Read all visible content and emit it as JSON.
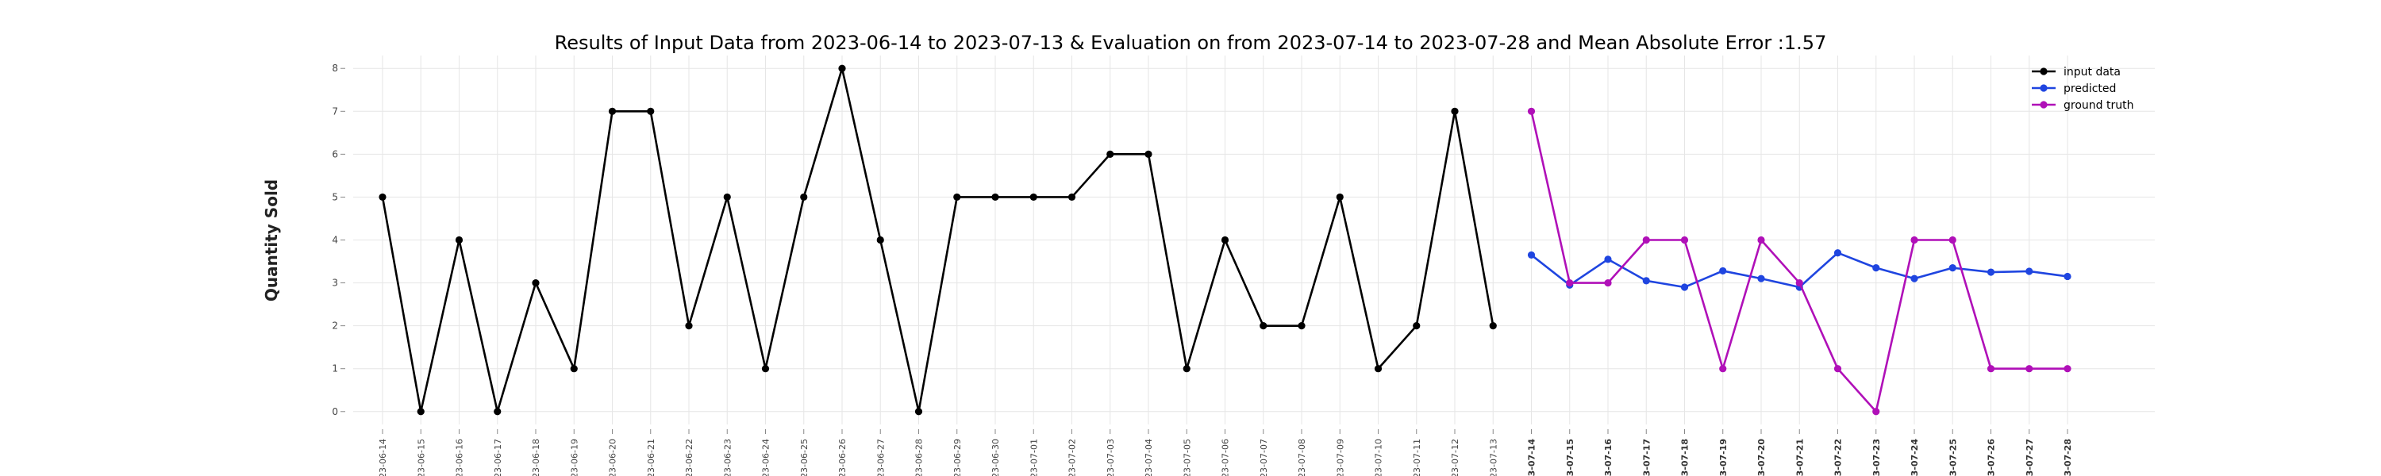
{
  "chart_data": {
    "type": "line",
    "title": "Results of Input Data from 2023-06-14 to 2023-07-13 & Evaluation on from 2023-07-14 to 2023-07-28 and Mean Absolute Error  :1.57",
    "xlabel": "",
    "ylabel": "Quantity Sold",
    "ylim": [
      -0.3,
      8.3
    ],
    "yticks": [
      0,
      1,
      2,
      3,
      4,
      5,
      6,
      7,
      8
    ],
    "grid": true,
    "legend_position": "top-right",
    "x_tick_labels": [
      "-23-06-14",
      "-23-06-15",
      "-23-06-16",
      "-23-06-17",
      "-23-06-18",
      "-23-06-19",
      "-23-06-20",
      "-23-06-21",
      "-23-06-22",
      "-23-06-23",
      "-23-06-24",
      "-23-06-25",
      "-23-06-26",
      "-23-06-27",
      "-23-06-28",
      "-23-06-29",
      "-23-06-30",
      "-23-07-01",
      "-23-07-02",
      "-23-07-03",
      "-23-07-04",
      "-23-07-05",
      "-23-07-06",
      "-23-07-07",
      "-23-07-08",
      "-23-07-09",
      "-23-07-10",
      "-23-07-11",
      "-23-07-12",
      "-23-07-13",
      "-23-07-14",
      "-23-07-15",
      "-23-07-16",
      "-23-07-17",
      "-23-07-18",
      "-23-07-19",
      "-23-07-20",
      "-23-07-21",
      "-23-07-22",
      "-23-07-23",
      "-23-07-24",
      "-23-07-25",
      "-23-07-26",
      "-23-07-27",
      "-23-07-28"
    ],
    "bold_tick_from": 30,
    "series": [
      {
        "name": "input data",
        "color": "#000000",
        "x": [
          "2023-06-14",
          "2023-06-15",
          "2023-06-16",
          "2023-06-17",
          "2023-06-18",
          "2023-06-19",
          "2023-06-20",
          "2023-06-21",
          "2023-06-22",
          "2023-06-23",
          "2023-06-24",
          "2023-06-25",
          "2023-06-26",
          "2023-06-27",
          "2023-06-28",
          "2023-06-29",
          "2023-06-30",
          "2023-07-01",
          "2023-07-02",
          "2023-07-03",
          "2023-07-04",
          "2023-07-05",
          "2023-07-06",
          "2023-07-07",
          "2023-07-08",
          "2023-07-09",
          "2023-07-10",
          "2023-07-11",
          "2023-07-12",
          "2023-07-13"
        ],
        "values": [
          5,
          0,
          4,
          0,
          3,
          1,
          7,
          7,
          2,
          5,
          1,
          5,
          8,
          4,
          0,
          5,
          5,
          5,
          5,
          6,
          6,
          1,
          4,
          2,
          2,
          5,
          1,
          2,
          7,
          2
        ]
      },
      {
        "name": "predicted",
        "color": "#1f45e0",
        "x": [
          "2023-07-14",
          "2023-07-15",
          "2023-07-16",
          "2023-07-17",
          "2023-07-18",
          "2023-07-19",
          "2023-07-20",
          "2023-07-21",
          "2023-07-22",
          "2023-07-23",
          "2023-07-24",
          "2023-07-25",
          "2023-07-26",
          "2023-07-27",
          "2023-07-28"
        ],
        "values": [
          3.65,
          2.95,
          3.55,
          3.05,
          2.9,
          3.28,
          3.1,
          2.9,
          3.7,
          3.35,
          3.1,
          3.35,
          3.25,
          3.27,
          3.15
        ]
      },
      {
        "name": "ground truth",
        "color": "#b010b8",
        "x": [
          "2023-07-14",
          "2023-07-15",
          "2023-07-16",
          "2023-07-17",
          "2023-07-18",
          "2023-07-19",
          "2023-07-20",
          "2023-07-21",
          "2023-07-22",
          "2023-07-23",
          "2023-07-24",
          "2023-07-25",
          "2023-07-26",
          "2023-07-27",
          "2023-07-28"
        ],
        "values": [
          7,
          3,
          3,
          4,
          4,
          1,
          4,
          3,
          1,
          0,
          4,
          4,
          1,
          1,
          1
        ]
      }
    ]
  }
}
